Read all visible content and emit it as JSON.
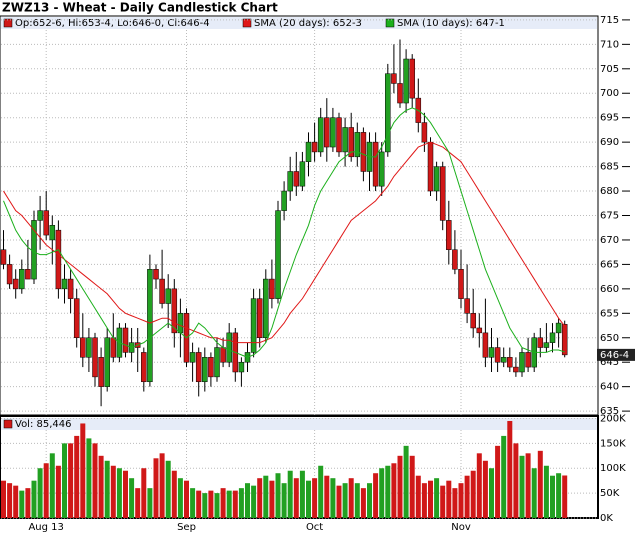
{
  "chart_data": [
    {
      "type": "candlestick",
      "title": "ZWZ13 - Wheat - Daily Candlestick Chart",
      "summary": "Op:652-6, Hi:653-4, Lo:646-0, Cl:646-4",
      "up_color": "#22a022",
      "down_color": "#d01818",
      "open": [
        668,
        665,
        662,
        660,
        664,
        662,
        674,
        676,
        670,
        672,
        660,
        662,
        658,
        650,
        646,
        650,
        646,
        640,
        650,
        646,
        652,
        647,
        649,
        647,
        641,
        664,
        662,
        657,
        660,
        651,
        655,
        645,
        647,
        641,
        646,
        642,
        648,
        645,
        651,
        643,
        645,
        647,
        658,
        650,
        662,
        658,
        676,
        680,
        684,
        681,
        686,
        690,
        688,
        695,
        689,
        695,
        688,
        693,
        687,
        692,
        684,
        690,
        681,
        688,
        704,
        702,
        698,
        707,
        699,
        694,
        690,
        680,
        685,
        674,
        668,
        664,
        658,
        655,
        652,
        651,
        646,
        648,
        645,
        646,
        644,
        643,
        647,
        644,
        650,
        648,
        649,
        651,
        652.75
      ],
      "high": [
        672,
        667,
        664,
        666,
        670,
        676,
        679,
        680,
        675,
        674,
        665,
        664,
        660,
        655,
        652,
        651,
        648,
        652,
        655,
        653,
        653,
        652,
        652,
        648,
        667,
        665,
        668,
        663,
        662,
        658,
        656,
        649,
        648,
        648,
        647,
        650,
        650,
        653,
        652,
        646,
        649,
        660,
        660,
        664,
        666,
        678,
        682,
        687,
        688,
        688,
        692,
        694,
        697,
        699,
        697,
        696,
        695,
        696,
        694,
        693,
        692,
        692,
        690,
        706,
        710,
        711,
        709,
        708,
        703,
        696,
        691,
        686,
        686,
        678,
        672,
        668,
        665,
        660,
        655,
        658,
        652,
        650,
        648,
        648,
        646,
        648,
        650,
        651,
        652,
        653,
        653,
        654,
        653.5
      ],
      "low": [
        664,
        660,
        658,
        659,
        662,
        661,
        668,
        670,
        665,
        658,
        657,
        655,
        648,
        644,
        643,
        640,
        636,
        639,
        645,
        645,
        646,
        645,
        643,
        639,
        640,
        660,
        656,
        652,
        648,
        646,
        644,
        641,
        638,
        639,
        640,
        641,
        644,
        644,
        641,
        640,
        643,
        646,
        648,
        649,
        656,
        657,
        674,
        678,
        679,
        680,
        683,
        686,
        687,
        686,
        688,
        687,
        685,
        686,
        685,
        682,
        680,
        680,
        679,
        687,
        700,
        697,
        696,
        697,
        692,
        688,
        679,
        678,
        672,
        665,
        663,
        656,
        653,
        650,
        648,
        644,
        643,
        643,
        644,
        643,
        642,
        642,
        643,
        643,
        646,
        647,
        647,
        648,
        646
      ],
      "close": [
        665,
        661,
        660,
        664,
        662,
        674,
        676,
        671,
        673,
        660,
        662,
        658,
        650,
        646,
        650,
        642,
        640,
        650,
        646,
        652,
        647,
        649,
        648,
        641,
        664,
        662,
        657,
        660,
        651,
        655,
        645,
        647,
        641,
        646,
        642,
        648,
        645,
        651,
        643,
        645,
        647,
        658,
        650,
        662,
        658,
        676,
        680,
        684,
        681,
        686,
        690,
        688,
        695,
        689,
        695,
        688,
        693,
        687,
        692,
        684,
        690,
        681,
        688,
        704,
        702,
        698,
        707,
        699,
        694,
        690,
        680,
        685,
        674,
        668,
        664,
        658,
        655,
        652,
        651,
        646,
        648,
        645,
        646,
        644,
        643,
        647,
        644,
        650,
        648,
        649,
        651,
        653,
        646.5
      ],
      "series": [
        {
          "name": "SMA (20 days): 652-3",
          "color": "#e01818",
          "values": [
            680,
            678,
            676,
            675,
            673.5,
            672,
            670.5,
            669,
            668,
            667,
            666,
            665,
            664,
            663,
            662,
            661,
            660,
            659,
            657.5,
            656,
            655,
            654.5,
            654,
            653.5,
            653,
            653.5,
            654,
            654,
            653,
            652.5,
            652,
            651.5,
            651,
            650.5,
            650,
            650,
            649.5,
            649.5,
            649,
            649,
            649,
            649,
            649,
            649.5,
            650,
            651.5,
            653,
            655,
            656.5,
            658,
            660,
            662,
            664,
            666,
            668,
            670,
            672,
            674,
            675,
            676,
            677,
            678,
            679.5,
            681,
            683,
            684.5,
            686,
            687.5,
            689,
            689.5,
            690,
            689.5,
            689,
            688,
            687,
            686,
            684,
            682,
            680,
            678,
            676,
            674,
            672,
            670,
            668,
            666,
            664,
            662,
            660,
            658,
            656,
            654,
            652.4
          ]
        },
        {
          "name": "SMA (10 days): 647-1",
          "color": "#1cb01c",
          "values": [
            678,
            675,
            672,
            670,
            668.5,
            667.5,
            667,
            667,
            667.5,
            668,
            666,
            664,
            662,
            660,
            658,
            656,
            654,
            652,
            650,
            649,
            648.5,
            648,
            648.5,
            649,
            650,
            651,
            652,
            653,
            652,
            651,
            650,
            651,
            653,
            652,
            650.5,
            649,
            648,
            647.5,
            647,
            646.5,
            646,
            646.5,
            647.5,
            649,
            652,
            656,
            660,
            663.5,
            667,
            670,
            673,
            677,
            680,
            682,
            684,
            686,
            687,
            688,
            688,
            687.5,
            687,
            687,
            689,
            691.5,
            694,
            695.5,
            696.5,
            697,
            696.5,
            695.5,
            694,
            692,
            690,
            688,
            684,
            680,
            676,
            672,
            668,
            664,
            661,
            658,
            655,
            652,
            650,
            648,
            647.5,
            647,
            647,
            647,
            647.5,
            647.5,
            647.1
          ]
        }
      ],
      "ylim": [
        634,
        716
      ],
      "yticks": [
        635,
        640,
        645,
        650,
        655,
        660,
        665,
        670,
        675,
        680,
        685,
        690,
        695,
        700,
        705,
        710,
        715
      ],
      "last_price": {
        "value": 646.5,
        "label": "646-4"
      },
      "grid": true
    },
    {
      "type": "bar",
      "legend": "Vol: 85,446",
      "categories": [
        null,
        null,
        null,
        null,
        null,
        null,
        null,
        "Aug 13",
        null,
        null,
        null,
        null,
        null,
        null,
        null,
        null,
        null,
        null,
        null,
        null,
        null,
        null,
        null,
        null,
        null,
        null,
        null,
        null,
        null,
        null,
        "Sep",
        null,
        null,
        null,
        null,
        null,
        null,
        null,
        null,
        null,
        null,
        null,
        null,
        null,
        null,
        null,
        null,
        null,
        null,
        null,
        null,
        "Oct",
        null,
        null,
        null,
        null,
        null,
        null,
        null,
        null,
        null,
        null,
        null,
        null,
        null,
        null,
        null,
        null,
        null,
        null,
        null,
        null,
        null,
        null,
        null,
        "Nov",
        null,
        null,
        null,
        null,
        null,
        null,
        null,
        null,
        null,
        null,
        null,
        null,
        null,
        null,
        null,
        null,
        null
      ],
      "values": [
        75000,
        70000,
        65000,
        55000,
        60000,
        75000,
        100000,
        110000,
        130000,
        105000,
        150000,
        150000,
        165000,
        190000,
        160000,
        150000,
        125000,
        115000,
        105000,
        100000,
        95000,
        80000,
        60000,
        100000,
        60000,
        120000,
        130000,
        115000,
        95000,
        80000,
        75000,
        60000,
        55000,
        50000,
        55000,
        50000,
        60000,
        55000,
        55000,
        60000,
        70000,
        65000,
        80000,
        85000,
        75000,
        90000,
        70000,
        95000,
        80000,
        95000,
        75000,
        80000,
        105000,
        85000,
        80000,
        65000,
        70000,
        80000,
        70000,
        60000,
        70000,
        90000,
        100000,
        105000,
        110000,
        125000,
        145000,
        125000,
        85000,
        70000,
        75000,
        80000,
        65000,
        75000,
        60000,
        70000,
        85000,
        95000,
        130000,
        115000,
        100000,
        145000,
        165000,
        195000,
        150000,
        125000,
        130000,
        100000,
        135000,
        105000,
        85000,
        90000,
        85446
      ],
      "ylim": [
        0,
        205000
      ],
      "yticks": [
        {
          "value": 0,
          "label": "0K"
        },
        {
          "value": 50000,
          "label": "50K"
        },
        {
          "value": 100000,
          "label": "100K"
        },
        {
          "value": 150000,
          "label": "150K"
        },
        {
          "value": 200000,
          "label": "200K"
        }
      ],
      "grid": true
    }
  ]
}
